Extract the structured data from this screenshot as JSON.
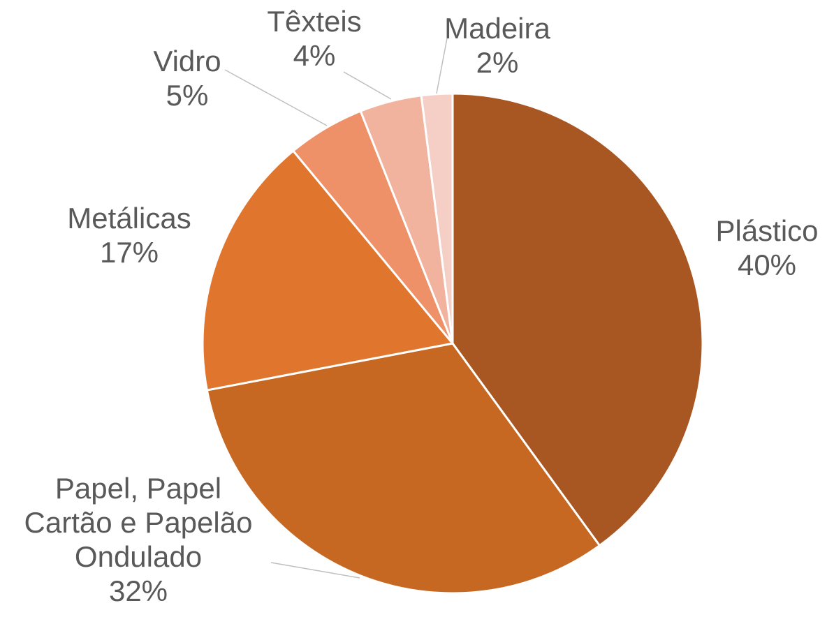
{
  "chart_data": {
    "type": "pie",
    "title": "",
    "slices": [
      {
        "label_lines": [
          "Plástico",
          "40%"
        ],
        "value": 40,
        "color": "#A85722"
      },
      {
        "label_lines": [
          "Papel, Papel",
          "Cartão e Papelão",
          "Ondulado",
          "32%"
        ],
        "value": 32,
        "color": "#C66821"
      },
      {
        "label_lines": [
          "Metálicas",
          "17%"
        ],
        "value": 17,
        "color": "#E0762D"
      },
      {
        "label_lines": [
          "Vidro",
          "5%"
        ],
        "value": 5,
        "color": "#EE9168"
      },
      {
        "label_lines": [
          "Têxteis",
          "4%"
        ],
        "value": 4,
        "color": "#F2B39E"
      },
      {
        "label_lines": [
          "Madeira",
          "2%"
        ],
        "value": 2,
        "color": "#F5CEC6"
      }
    ],
    "start_angle_deg": 0,
    "direction": "clockwise",
    "data_labels": "category and percentage, outside",
    "legend": "none"
  }
}
